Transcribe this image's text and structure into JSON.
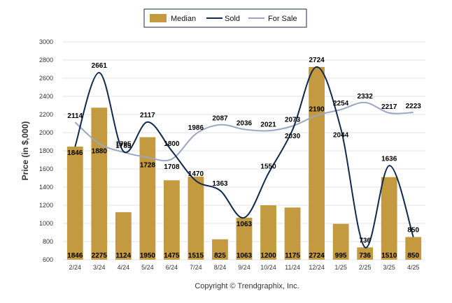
{
  "chart_data": {
    "type": "bar",
    "categories": [
      "2/24",
      "3/24",
      "4/24",
      "5/24",
      "6/24",
      "7/24",
      "8/24",
      "9/24",
      "10/24",
      "11/24",
      "12/24",
      "1/25",
      "2/25",
      "3/25",
      "4/25"
    ],
    "series": [
      {
        "name": "Median",
        "type": "bar",
        "values": [
          1846,
          2275,
          1124,
          1950,
          1475,
          1515,
          825,
          1063,
          1200,
          1175,
          2724,
          995,
          736,
          1510,
          850
        ]
      },
      {
        "name": "Sold",
        "type": "line",
        "values": [
          1846,
          2661,
          1795,
          2117,
          1800,
          1470,
          1363,
          1063,
          1550,
          2030,
          2724,
          2044,
          736,
          1636,
          850
        ]
      },
      {
        "name": "For Sale",
        "type": "line",
        "values": [
          2114,
          1880,
          1785,
          1728,
          1708,
          1986,
          2087,
          2036,
          2021,
          2073,
          2190,
          2254,
          2332,
          2217,
          2223
        ]
      }
    ],
    "sold_labels": [
      {
        "index": 0,
        "text": "1846"
      },
      {
        "index": 1,
        "text": "2661"
      },
      {
        "index": 2,
        "text": "1795"
      },
      {
        "index": 3,
        "text": "2117"
      },
      {
        "index": 4,
        "text": "1800"
      },
      {
        "index": 5,
        "text": "1470"
      },
      {
        "index": 6,
        "text": "1363"
      },
      {
        "index": 7,
        "text": "1063"
      },
      {
        "index": 8,
        "text": "1550"
      },
      {
        "index": 9,
        "text": "2030"
      },
      {
        "index": 10,
        "text": "2724"
      },
      {
        "index": 11,
        "text": "2044"
      },
      {
        "index": 12,
        "text": "736"
      },
      {
        "index": 13,
        "text": "1636"
      },
      {
        "index": 14,
        "text": "850"
      }
    ],
    "forsale_labels": [
      {
        "index": 0,
        "text": "2114"
      },
      {
        "index": 1,
        "text": "1880"
      },
      {
        "index": 2,
        "text": "1785"
      },
      {
        "index": 3,
        "text": "1728"
      },
      {
        "index": 4,
        "text": "1708"
      },
      {
        "index": 5,
        "text": "1986"
      },
      {
        "index": 6,
        "text": "2087"
      },
      {
        "index": 7,
        "text": "2036"
      },
      {
        "index": 8,
        "text": "2021"
      },
      {
        "index": 9,
        "text": "2073"
      },
      {
        "index": 10,
        "text": "2190"
      },
      {
        "index": 11,
        "text": "2254"
      },
      {
        "index": 12,
        "text": "2332"
      },
      {
        "index": 13,
        "text": "2217"
      },
      {
        "index": 14,
        "text": "2223"
      }
    ],
    "ylabel": "Price (in $,000)",
    "xlabel": "",
    "ylim": [
      600,
      3000
    ],
    "yticks": [
      600,
      800,
      1000,
      1200,
      1400,
      1600,
      1800,
      2000,
      2200,
      2400,
      2600,
      2800,
      3000
    ],
    "grid": true,
    "legend_position": "top-center"
  },
  "colors": {
    "median": "#c39a3f",
    "sold": "#0f2a4d",
    "for_sale": "#9aa6c4",
    "grid": "#e3e3e3"
  },
  "legend": {
    "median": "Median",
    "sold": "Sold",
    "for_sale": "For Sale"
  },
  "footer": {
    "copyright": "Copyright © Trendgraphix, Inc."
  }
}
